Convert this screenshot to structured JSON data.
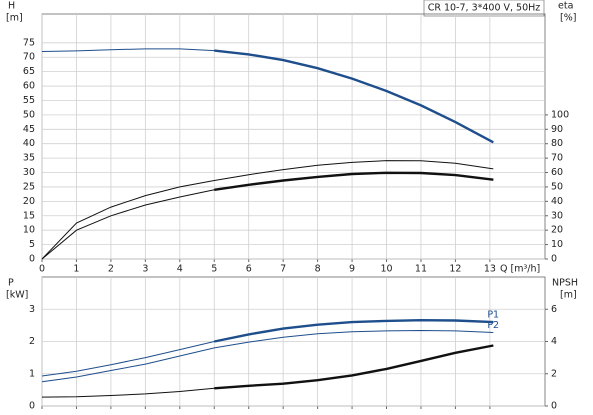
{
  "chart_data": [
    {
      "type": "line",
      "title": "CR 10-7, 3*400 V, 50Hz",
      "x_label": "Q [m³/h]",
      "y_label": "H",
      "y_unit": "[m]",
      "y2_label": "eta",
      "y2_unit": "[%]",
      "x": [
        0,
        1,
        2,
        3,
        4,
        5,
        6,
        7,
        8,
        9,
        10,
        11,
        12,
        13.1
      ],
      "xlim": [
        0,
        14.6
      ],
      "xticks": [
        0,
        1,
        2,
        3,
        4,
        5,
        6,
        7,
        8,
        9,
        10,
        11,
        12,
        13
      ],
      "ylim": [
        0,
        85
      ],
      "yticks": [
        0,
        5,
        10,
        15,
        20,
        25,
        30,
        35,
        40,
        45,
        50,
        55,
        60,
        65,
        70,
        75
      ],
      "y2lim": [
        0,
        170
      ],
      "y2ticks": [
        0,
        10,
        20,
        30,
        40,
        50,
        60,
        70,
        80,
        90,
        100
      ],
      "grid": true,
      "show_xtick_labels": true,
      "series": [
        {
          "color": "#1f4e8c",
          "thick_from": 5,
          "values": [
            72,
            72.2,
            72.6,
            72.9,
            72.9,
            72.3,
            71,
            69,
            66.2,
            62.6,
            58.3,
            53.3,
            47.5,
            40.5
          ]
        },
        {
          "color": "#111111",
          "axis": "y2",
          "thick_from": 14,
          "values": [
            0,
            25,
            36,
            44,
            50,
            54.5,
            58.5,
            62,
            65,
            67,
            68.3,
            68.2,
            66.5,
            62.5
          ]
        },
        {
          "color": "#111111",
          "axis": "y2",
          "thick_from": 5,
          "values": [
            0,
            20,
            30,
            37.5,
            43,
            48,
            51.5,
            54.5,
            57,
            59,
            59.8,
            59.7,
            58.2,
            55
          ]
        }
      ]
    },
    {
      "type": "line",
      "y_label": "P",
      "y_unit": "[kW]",
      "y2_label": "NPSH",
      "y2_unit": "[m]",
      "x": [
        0,
        1,
        2,
        3,
        4,
        5,
        6,
        7,
        8,
        9,
        10,
        11,
        12,
        13.1
      ],
      "xlim": [
        0,
        14.6
      ],
      "xticks": [
        0,
        1,
        2,
        3,
        4,
        5,
        6,
        7,
        8,
        9,
        10,
        11,
        12,
        13
      ],
      "ylim": [
        0,
        4
      ],
      "yticks": [
        0,
        1,
        2,
        3
      ],
      "y2lim": [
        0,
        8
      ],
      "y2ticks": [
        0,
        2,
        4,
        6
      ],
      "grid": true,
      "show_xtick_labels": false,
      "series": [
        {
          "name": "P1",
          "color": "#1f4e8c",
          "thick_from": 5,
          "values": [
            0.93,
            1.08,
            1.28,
            1.5,
            1.75,
            2.0,
            2.22,
            2.4,
            2.52,
            2.6,
            2.64,
            2.66,
            2.65,
            2.6
          ]
        },
        {
          "name": "P2",
          "color": "#1f4e8c",
          "thick_from": 14,
          "values": [
            0.75,
            0.9,
            1.1,
            1.3,
            1.55,
            1.8,
            1.98,
            2.13,
            2.24,
            2.3,
            2.33,
            2.34,
            2.33,
            2.28
          ]
        },
        {
          "color": "#111111",
          "axis": "y2",
          "thick_from": 5,
          "values": [
            0.55,
            0.57,
            0.65,
            0.75,
            0.9,
            1.1,
            1.25,
            1.38,
            1.6,
            1.9,
            2.3,
            2.8,
            3.3,
            3.75
          ]
        }
      ]
    }
  ]
}
